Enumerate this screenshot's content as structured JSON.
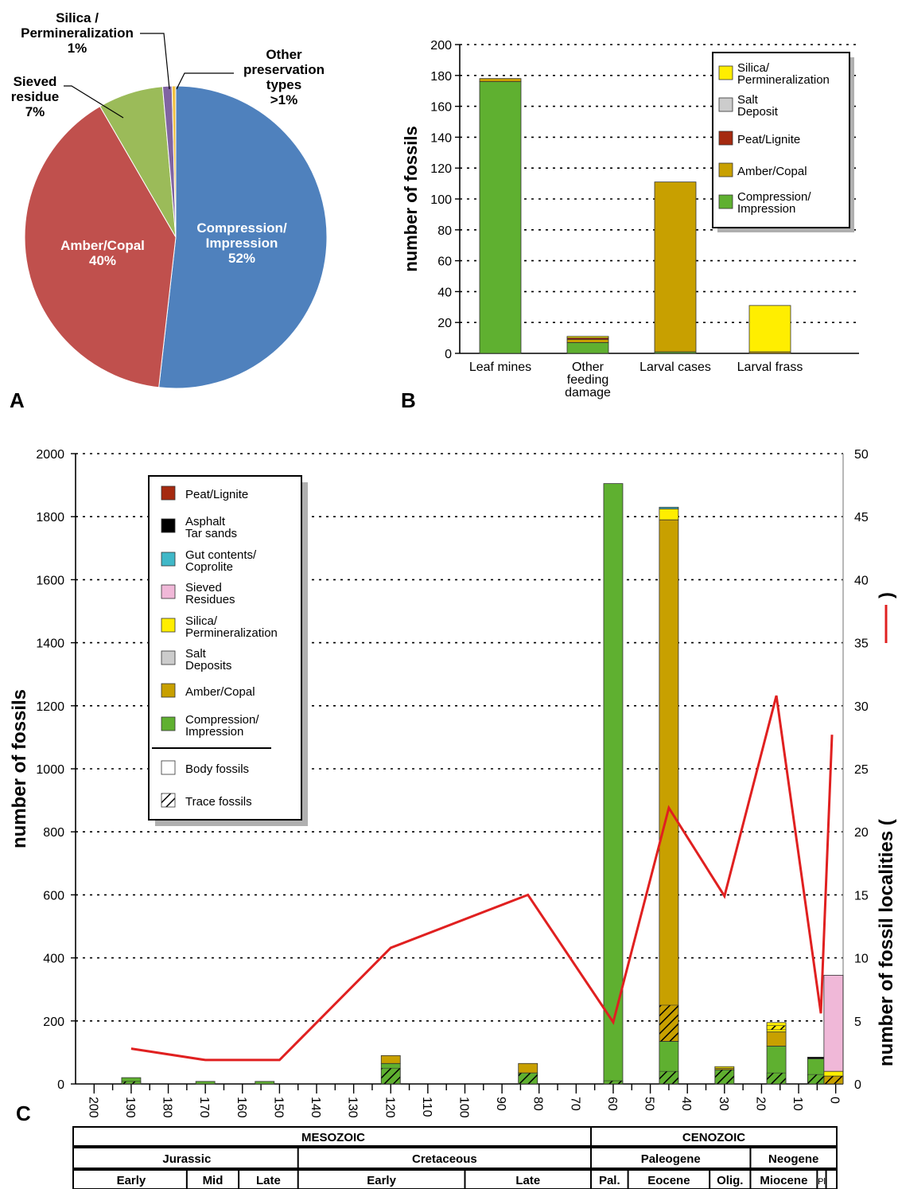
{
  "panel_labels": {
    "a": "A",
    "b": "B",
    "c": "C"
  },
  "chart_data": [
    {
      "type": "pie",
      "slices": [
        {
          "label": [
            "Compression/",
            "Impression",
            "52%"
          ],
          "value": 52,
          "color": "#4f81bd"
        },
        {
          "label": [
            "Amber/Copal",
            "40%"
          ],
          "value": 40,
          "color": "#c0504d"
        },
        {
          "label": [
            "Sieved",
            "residue",
            "7%"
          ],
          "value": 7,
          "color": "#9bbb59"
        },
        {
          "label": [
            "Silica /",
            "Permineralization",
            "1%"
          ],
          "value": 1,
          "color": "#8064a2"
        },
        {
          "label": [
            "Other",
            "preservation",
            "types",
            ">1%"
          ],
          "value": 0.4,
          "color": "#f0c040"
        }
      ]
    },
    {
      "type": "bar",
      "stacked": true,
      "ylabel": "number of fossils",
      "ylim": [
        0,
        200
      ],
      "yticks": [
        0,
        20,
        40,
        60,
        80,
        100,
        120,
        140,
        160,
        180,
        200
      ],
      "grid": true,
      "legend_position": "top-right",
      "categories": [
        [
          "Leaf mines"
        ],
        [
          "Other",
          "feeding",
          "damage"
        ],
        [
          "Larval cases"
        ],
        [
          "Larval frass"
        ]
      ],
      "series": [
        {
          "name": [
            "Compression/",
            "Impression"
          ],
          "color": "#5fb030",
          "values": [
            176,
            7,
            1,
            0
          ]
        },
        {
          "name": [
            "Amber/Copal"
          ],
          "color": "#c8a000",
          "values": [
            2,
            2,
            110,
            1
          ]
        },
        {
          "name": [
            "Peat/Lignite"
          ],
          "color": "#a52a10",
          "values": [
            0,
            1,
            0,
            0
          ]
        },
        {
          "name": [
            "Salt",
            "Deposit"
          ],
          "color": "#cccccc",
          "values": [
            0,
            0,
            0,
            0
          ]
        },
        {
          "name": [
            "Silica/",
            "Permineralization"
          ],
          "color": "#ffee00",
          "values": [
            0,
            1,
            0,
            30
          ]
        }
      ]
    },
    {
      "type": "bar",
      "stacked": true,
      "ylabel": "number of fossils",
      "y2label": "number of fossil localities (",
      "ylim": [
        0,
        2000
      ],
      "yticks": [
        0,
        200,
        400,
        600,
        800,
        1000,
        1200,
        1400,
        1600,
        1800,
        2000
      ],
      "y2lim": [
        0,
        50
      ],
      "y2ticks": [
        0,
        5,
        10,
        15,
        20,
        25,
        30,
        35,
        40,
        45,
        50
      ],
      "xlim": [
        205,
        -2
      ],
      "xticks": [
        200,
        190,
        180,
        170,
        160,
        150,
        140,
        130,
        120,
        110,
        100,
        90,
        80,
        70,
        60,
        50,
        40,
        30,
        20,
        10,
        0
      ],
      "grid": true,
      "legend_position": "top-left",
      "legend": [
        {
          "label": [
            "Peat/Lignite"
          ],
          "color": "#a52a10"
        },
        {
          "label": [
            "Asphalt",
            "Tar sands"
          ],
          "color": "#000000"
        },
        {
          "label": [
            "Gut contents/",
            "Coprolite"
          ],
          "color": "#40b8c8"
        },
        {
          "label": [
            "Sieved",
            "Residues"
          ],
          "color": "#f0b8d8"
        },
        {
          "label": [
            "Silica/",
            "Permineralization"
          ],
          "color": "#ffee00"
        },
        {
          "label": [
            "Salt",
            "Deposits"
          ],
          "color": "#cccccc"
        },
        {
          "label": [
            "Amber/Copal"
          ],
          "color": "#c8a000"
        },
        {
          "label": [
            "Compression/",
            "Impression"
          ],
          "color": "#5fb030"
        },
        {
          "label": [
            "Body fossils"
          ],
          "color": "#ffffff"
        },
        {
          "label": [
            "Trace fossils"
          ],
          "color": "hatch"
        }
      ],
      "bars": [
        {
          "x": 190,
          "segments": [
            {
              "color": "#5fb030",
              "from": 0,
              "to": 20,
              "trace_to": 8
            }
          ]
        },
        {
          "x": 170,
          "segments": [
            {
              "color": "#5fb030",
              "from": 0,
              "to": 8
            }
          ]
        },
        {
          "x": 154,
          "segments": [
            {
              "color": "#5fb030",
              "from": 0,
              "to": 8
            }
          ]
        },
        {
          "x": 120,
          "segments": [
            {
              "color": "#5fb030",
              "from": 0,
              "to": 65,
              "trace_to": 50
            },
            {
              "color": "#c8a000",
              "from": 65,
              "to": 90
            }
          ]
        },
        {
          "x": 83,
          "segments": [
            {
              "color": "#5fb030",
              "from": 0,
              "to": 35,
              "trace_to": 35
            },
            {
              "color": "#c8a000",
              "from": 35,
              "to": 65
            }
          ]
        },
        {
          "x": 60,
          "segments": [
            {
              "color": "#5fb030",
              "from": 0,
              "to": 1905,
              "trace_to": 10
            }
          ]
        },
        {
          "x": 45,
          "segments": [
            {
              "color": "#5fb030",
              "from": 0,
              "to": 135,
              "trace_to": 40
            },
            {
              "color": "#c8a000",
              "from": 135,
              "to": 1790,
              "trace_from": 135,
              "trace_to": 250
            },
            {
              "color": "#ffee00",
              "from": 1790,
              "to": 1825
            },
            {
              "color": "#40b8c8",
              "from": 1825,
              "to": 1830
            }
          ]
        },
        {
          "x": 30,
          "segments": [
            {
              "color": "#5fb030",
              "from": 0,
              "to": 45,
              "trace_to": 45
            },
            {
              "color": "#c8a000",
              "from": 45,
              "to": 50
            },
            {
              "color": "#ffee00",
              "from": 50,
              "to": 55
            }
          ]
        },
        {
          "x": 16,
          "segments": [
            {
              "color": "#5fb030",
              "from": 0,
              "to": 120,
              "trace_to": 35
            },
            {
              "color": "#c8a000",
              "from": 120,
              "to": 165
            },
            {
              "color": "#ffee00",
              "from": 165,
              "to": 195,
              "trace_from": 172,
              "trace_to": 185
            }
          ]
        },
        {
          "x": 5,
          "segments": [
            {
              "color": "#5fb030",
              "from": 0,
              "to": 80,
              "trace_to": 30
            },
            {
              "color": "#000000",
              "from": 80,
              "to": 85
            }
          ]
        },
        {
          "x": 0.6,
          "segments": [
            {
              "color": "#c8a000",
              "from": 0,
              "to": 25,
              "trace_to": 25
            },
            {
              "color": "#ffee00",
              "from": 25,
              "to": 40
            },
            {
              "color": "#f0b8d8",
              "from": 40,
              "to": 345
            }
          ]
        }
      ],
      "line": {
        "name": "localities",
        "color": "#e02020",
        "points": [
          [
            190,
            2.8
          ],
          [
            170,
            1.9
          ],
          [
            150,
            1.9
          ],
          [
            120,
            10.8
          ],
          [
            83,
            15
          ],
          [
            60,
            4.9
          ],
          [
            45,
            21.9
          ],
          [
            30,
            14.9
          ],
          [
            16,
            30.8
          ],
          [
            4,
            5.6
          ],
          [
            1,
            27.7
          ]
        ]
      }
    }
  ],
  "timescale": {
    "eras": [
      {
        "label": "MESOZOIC",
        "from": 205,
        "to": 66
      },
      {
        "label": "CENOZOIC",
        "from": 66,
        "to": -2
      }
    ],
    "periods": [
      {
        "label": "Jurassic",
        "from": 205,
        "to": 145
      },
      {
        "label": "Cretaceous",
        "from": 145,
        "to": 66
      },
      {
        "label": "Paleogene",
        "from": 66,
        "to": 23
      },
      {
        "label": "Neogene",
        "from": 23,
        "to": -2
      }
    ],
    "epochs": [
      {
        "label": "Early",
        "from": 205,
        "to": 175
      },
      {
        "label": "Mid",
        "from": 175,
        "to": 161
      },
      {
        "label": "Late",
        "from": 161,
        "to": 145
      },
      {
        "label": "Early",
        "from": 145,
        "to": 100
      },
      {
        "label": "Late",
        "from": 100,
        "to": 66
      },
      {
        "label": "Pal.",
        "from": 66,
        "to": 56
      },
      {
        "label": "Eocene",
        "from": 56,
        "to": 34
      },
      {
        "label": "Olig.",
        "from": 34,
        "to": 23
      },
      {
        "label": "Miocene",
        "from": 23,
        "to": 5
      },
      {
        "label": "Pl",
        "from": 5,
        "to": 2.6
      },
      {
        "label": "",
        "from": 2.6,
        "to": -2
      }
    ]
  }
}
